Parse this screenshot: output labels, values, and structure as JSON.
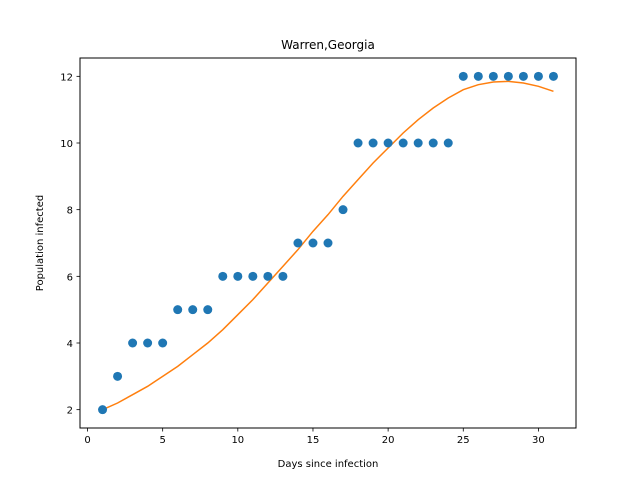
{
  "chart_data": {
    "type": "scatter",
    "title": "Warren,Georgia",
    "xlabel": "Days since infection",
    "ylabel": "Population infected",
    "xlim": [
      -0.5,
      32.5
    ],
    "ylim": [
      1.45,
      12.55
    ],
    "xticks": [
      0,
      5,
      10,
      15,
      20,
      25,
      30
    ],
    "yticks": [
      2,
      4,
      6,
      8,
      10,
      12
    ],
    "grid": false,
    "colors": {
      "points": "#1f77b4",
      "fit": "#ff7f0e"
    },
    "series": [
      {
        "type": "scatter",
        "x": [
          1,
          2,
          3,
          4,
          5,
          6,
          7,
          8,
          9,
          10,
          11,
          12,
          13,
          14,
          15,
          16,
          17,
          18,
          19,
          20,
          21,
          22,
          23,
          24,
          25,
          26,
          27,
          28,
          29,
          30,
          31
        ],
        "y": [
          2,
          3,
          4,
          4,
          4,
          5,
          5,
          5,
          6,
          6,
          6,
          6,
          6,
          7,
          7,
          7,
          8,
          10,
          10,
          10,
          10,
          10,
          10,
          10,
          12,
          12,
          12,
          12,
          12,
          12,
          12
        ]
      },
      {
        "type": "line",
        "x": [
          1,
          2,
          3,
          4,
          5,
          6,
          7,
          8,
          9,
          10,
          11,
          12,
          13,
          14,
          15,
          16,
          17,
          18,
          19,
          20,
          21,
          22,
          23,
          24,
          25,
          26,
          27,
          28,
          29,
          30,
          31
        ],
        "y": [
          2.0,
          2.2,
          2.45,
          2.7,
          3.0,
          3.3,
          3.65,
          4.0,
          4.4,
          4.85,
          5.3,
          5.8,
          6.3,
          6.8,
          7.35,
          7.85,
          8.4,
          8.9,
          9.4,
          9.85,
          10.3,
          10.7,
          11.05,
          11.35,
          11.6,
          11.75,
          11.83,
          11.85,
          11.8,
          11.7,
          11.55
        ]
      }
    ]
  }
}
